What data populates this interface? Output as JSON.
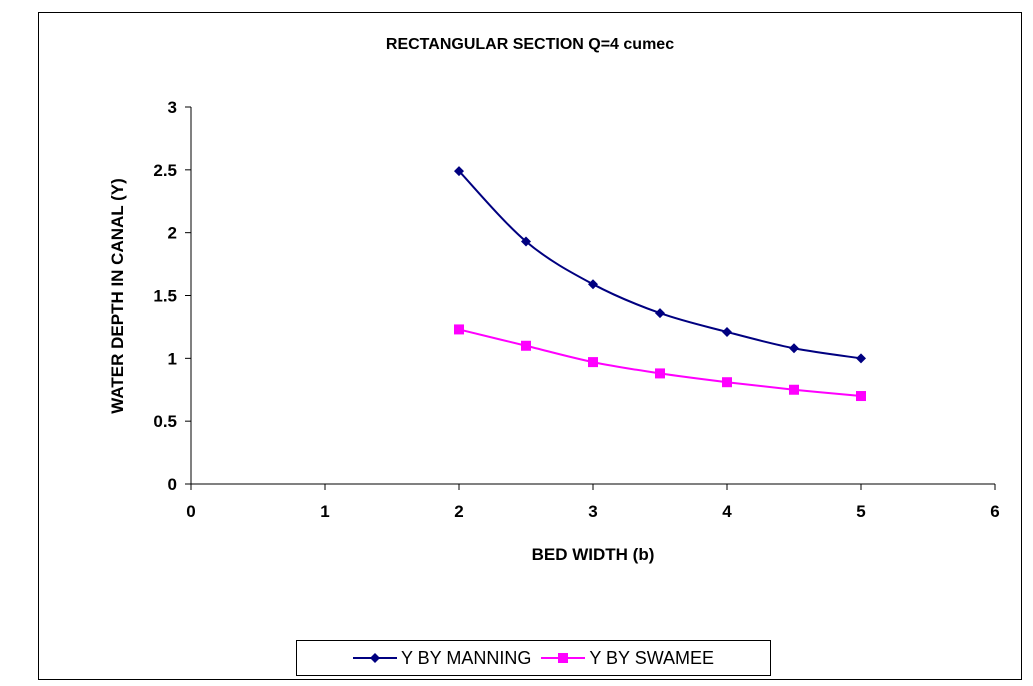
{
  "chart_data": {
    "type": "line",
    "title": "RECTANGULAR SECTION Q=4 cumec",
    "xlabel": "BED WIDTH (b)",
    "ylabel": "WATER DEPTH IN CANAL (Y)",
    "xlim": [
      0,
      6
    ],
    "ylim": [
      0,
      3
    ],
    "xticks": [
      "0",
      "1",
      "2",
      "3",
      "4",
      "5",
      "6"
    ],
    "yticks": [
      "0",
      "0.5",
      "1",
      "1.5",
      "2",
      "2.5",
      "3"
    ],
    "grid": false,
    "legend": "bottom",
    "x": [
      2,
      2.5,
      3,
      3.5,
      4,
      4.5,
      5
    ],
    "series": [
      {
        "name": "Y BY MANNING",
        "values": [
          2.49,
          1.93,
          1.59,
          1.36,
          1.21,
          1.08,
          1.0
        ],
        "color": "#000080",
        "marker": "diamond"
      },
      {
        "name": "Y BY SWAMEE",
        "values": [
          1.23,
          1.1,
          0.97,
          0.88,
          0.81,
          0.75,
          0.7
        ],
        "color": "#FF00FF",
        "marker": "square"
      }
    ]
  }
}
